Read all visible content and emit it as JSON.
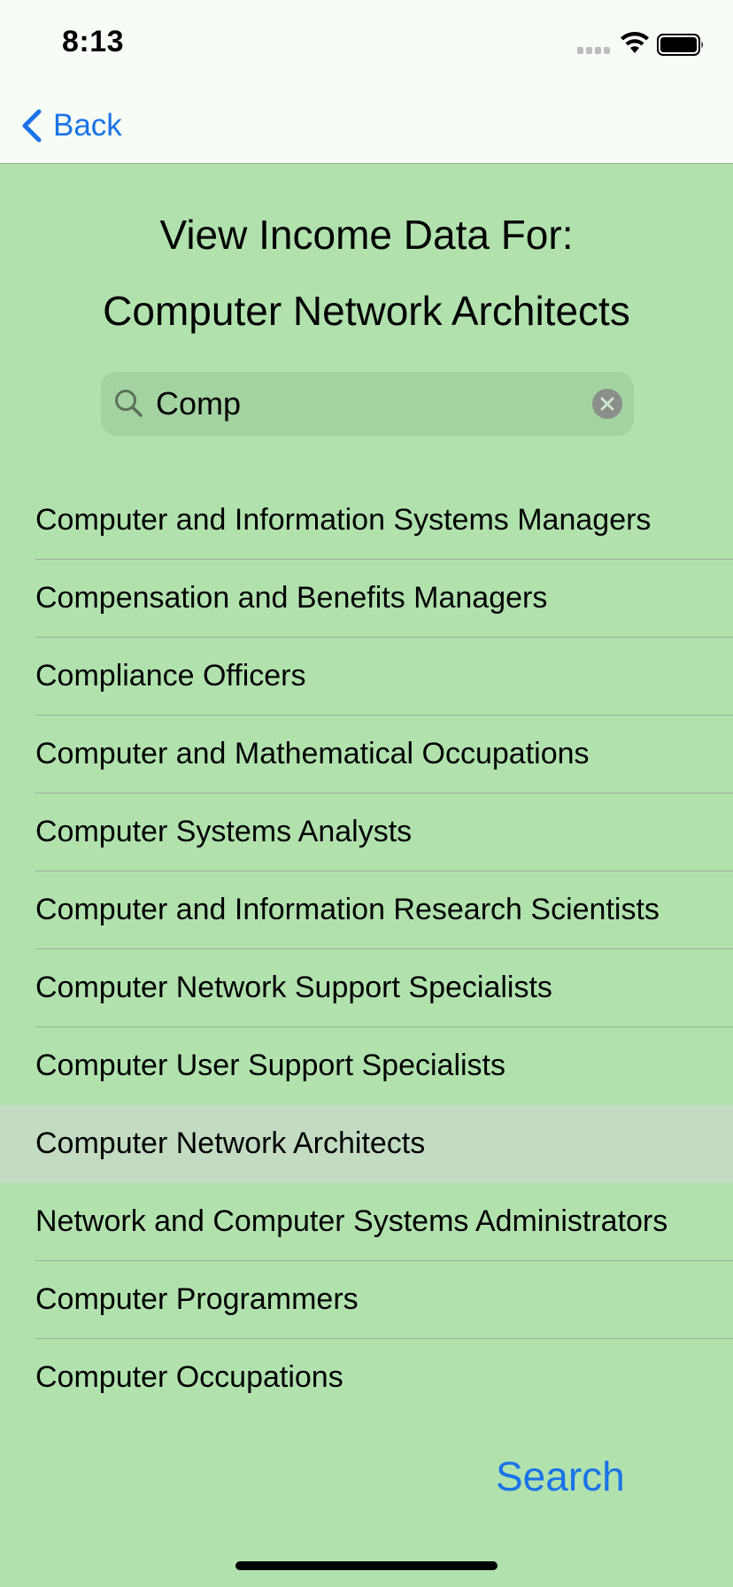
{
  "status_bar": {
    "time": "8:13",
    "icons": [
      "cellular-signal-icon",
      "wifi-icon",
      "battery-icon"
    ]
  },
  "nav": {
    "back_label": "Back",
    "back_icon": "chevron-left-icon"
  },
  "header": {
    "line1": "View Income Data For:",
    "line2": "Computer Network Architects"
  },
  "search": {
    "value": "Comp",
    "icon": "search-icon",
    "clear_icon": "clear-icon"
  },
  "results": [
    {
      "label": "Computer and Information Systems Managers",
      "selected": false
    },
    {
      "label": "Compensation and Benefits Managers",
      "selected": false
    },
    {
      "label": "Compliance Officers",
      "selected": false
    },
    {
      "label": "Computer and Mathematical Occupations",
      "selected": false
    },
    {
      "label": "Computer Systems Analysts",
      "selected": false
    },
    {
      "label": "Computer and Information Research Scientists",
      "selected": false
    },
    {
      "label": "Computer Network Support Specialists",
      "selected": false
    },
    {
      "label": "Computer User Support Specialists",
      "selected": false
    },
    {
      "label": "Computer Network Architects",
      "selected": true
    },
    {
      "label": "Network and Computer Systems Administrators",
      "selected": false
    },
    {
      "label": "Computer Programmers",
      "selected": false
    },
    {
      "label": "Computer Occupations",
      "selected": false
    }
  ],
  "actions": {
    "search_label": "Search"
  },
  "colors": {
    "background": "#b1e2ae",
    "bar_background": "#f7fdf6",
    "accent": "#1a73e8",
    "selected_row": "#c3dbc2"
  }
}
